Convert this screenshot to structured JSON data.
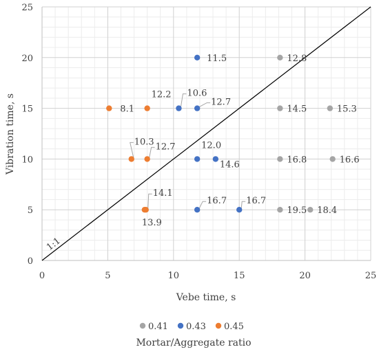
{
  "chart_data": {
    "type": "scatter",
    "xlabel": "Vebe time, s",
    "ylabel": "Vibration time, s",
    "xlim": [
      0,
      25
    ],
    "ylim": [
      0,
      25
    ],
    "xticks": [
      0,
      5,
      10,
      15,
      20,
      25
    ],
    "yticks": [
      0,
      5,
      10,
      15,
      20,
      25
    ],
    "grid": true,
    "reference_line": {
      "label": "1:1",
      "from": [
        0,
        0
      ],
      "to": [
        25,
        25
      ],
      "color": "#000000"
    },
    "legend": {
      "position": "bottom",
      "title": "Mortar/Aggregate ratio"
    },
    "series": [
      {
        "name": "0.41",
        "color": "#a5a5a5",
        "points": [
          {
            "x": 18.1,
            "y": 20,
            "label": "12.8"
          },
          {
            "x": 18.1,
            "y": 15,
            "label": "14.5"
          },
          {
            "x": 21.9,
            "y": 15,
            "label": "15.3"
          },
          {
            "x": 18.1,
            "y": 10,
            "label": "16.8"
          },
          {
            "x": 22.1,
            "y": 10,
            "label": "16.6"
          },
          {
            "x": 18.1,
            "y": 5,
            "label": "19.5"
          },
          {
            "x": 20.4,
            "y": 5,
            "label": "18.4"
          }
        ]
      },
      {
        "name": "0.43",
        "color": "#4472c4",
        "points": [
          {
            "x": 11.8,
            "y": 20,
            "label": "11.5"
          },
          {
            "x": 10.4,
            "y": 15,
            "label": "10.6"
          },
          {
            "x": 11.8,
            "y": 15,
            "label": "12.7"
          },
          {
            "x": 11.8,
            "y": 10,
            "label": "12.0"
          },
          {
            "x": 13.2,
            "y": 10,
            "label": "14.6"
          },
          {
            "x": 11.8,
            "y": 5,
            "label": "16.7"
          },
          {
            "x": 15.0,
            "y": 5,
            "label": "16.7"
          }
        ]
      },
      {
        "name": "0.45",
        "color": "#ed7d31",
        "points": [
          {
            "x": 5.1,
            "y": 15,
            "label": "8.1"
          },
          {
            "x": 8.0,
            "y": 15,
            "label": "12.2"
          },
          {
            "x": 6.8,
            "y": 10,
            "label": "10.3"
          },
          {
            "x": 8.0,
            "y": 10,
            "label": "12.7"
          },
          {
            "x": 7.9,
            "y": 5,
            "label": "14.1"
          },
          {
            "x": 7.8,
            "y": 5,
            "label": "13.9"
          }
        ]
      }
    ]
  }
}
